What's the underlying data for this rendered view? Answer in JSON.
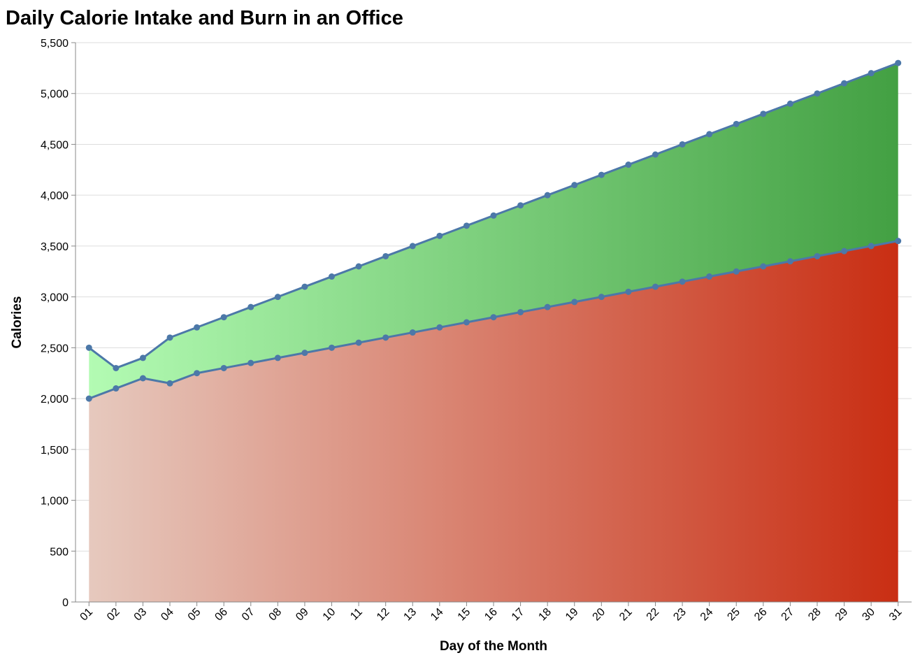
{
  "chart_data": {
    "type": "area",
    "title": "Daily Calorie Intake and Burn in an Office",
    "xlabel": "Day of the Month",
    "ylabel": "Calories",
    "ylim": [
      0,
      5500
    ],
    "yticks": [
      0,
      500,
      1000,
      1500,
      2000,
      2500,
      3000,
      3500,
      4000,
      4500,
      5000,
      5500
    ],
    "ytick_labels": [
      "0",
      "500",
      "1,000",
      "1,500",
      "2,000",
      "2,500",
      "3,000",
      "3,500",
      "4,000",
      "4,500",
      "5,000",
      "5,500"
    ],
    "categories": [
      "01",
      "02",
      "03",
      "04",
      "05",
      "06",
      "07",
      "08",
      "09",
      "10",
      "11",
      "12",
      "13",
      "14",
      "15",
      "16",
      "17",
      "18",
      "19",
      "20",
      "21",
      "22",
      "23",
      "24",
      "25",
      "26",
      "27",
      "28",
      "29",
      "30",
      "31"
    ],
    "series": [
      {
        "values": [
          2000,
          2100,
          2200,
          2150,
          2250,
          2300,
          2350,
          2400,
          2450,
          2500,
          2550,
          2600,
          2650,
          2700,
          2750,
          2800,
          2850,
          2900,
          2950,
          3000,
          3050,
          3100,
          3150,
          3200,
          3250,
          3300,
          3350,
          3400,
          3450,
          3500,
          3550
        ],
        "fill_gradient": [
          "#e6c9be",
          "#c92e13"
        ]
      },
      {
        "values": [
          2500,
          2300,
          2400,
          2600,
          2700,
          2800,
          2900,
          3000,
          3100,
          3200,
          3300,
          3400,
          3500,
          3600,
          3700,
          3800,
          3900,
          4000,
          4100,
          4200,
          4300,
          4400,
          4500,
          4600,
          4700,
          4800,
          4900,
          5000,
          5100,
          5200,
          5300
        ],
        "fill_gradient": [
          "#b3fbb3",
          "#43a043"
        ]
      }
    ],
    "line_color": "#4c78a8",
    "grid": true
  }
}
